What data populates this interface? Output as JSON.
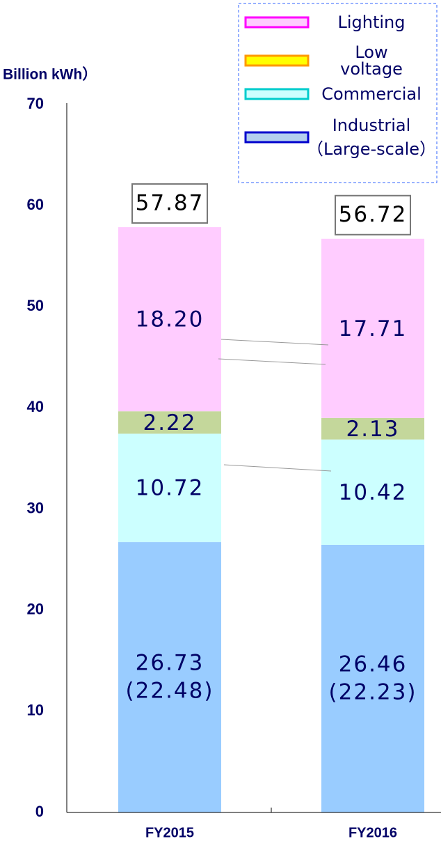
{
  "chart_data": {
    "type": "stacked_bar",
    "y_axis_label": "Billion kWh）",
    "categories": [
      "FY2015",
      "FY2016"
    ],
    "ylim": [
      0,
      70
    ],
    "yticks": [
      0,
      10,
      20,
      30,
      40,
      50,
      60,
      70
    ],
    "grid": false,
    "series": [
      {
        "name": "Industrial\n（Large-scale）",
        "color": "#99ccff",
        "legend_color": "#b4cfee",
        "legend_border": "#0000cc",
        "values": [
          26.73,
          26.46
        ],
        "value_labels": [
          "26.73",
          "26.46"
        ],
        "secondary_labels": [
          "(22.48)",
          "(22.23)"
        ]
      },
      {
        "name": "Commercial",
        "color": "#ccffff",
        "legend_color": "#ccffff",
        "legend_border": "#00cccc",
        "values": [
          10.72,
          10.42
        ],
        "value_labels": [
          "10.72",
          "10.42"
        ]
      },
      {
        "name": "Low\nvoltage",
        "color": "#c4d79b",
        "legend_color": "#ffff00",
        "legend_border": "#ff9900",
        "values": [
          2.22,
          2.13
        ],
        "value_labels": [
          "2.22",
          "2.13"
        ]
      },
      {
        "name": "Lighting",
        "color": "#ffccff",
        "legend_color": "#ffccff",
        "legend_border": "#ff00ff",
        "values": [
          18.2,
          17.71
        ],
        "value_labels": [
          "18.20",
          "17.71"
        ]
      }
    ],
    "totals": [
      57.87,
      56.72
    ],
    "legend": "top-right"
  }
}
